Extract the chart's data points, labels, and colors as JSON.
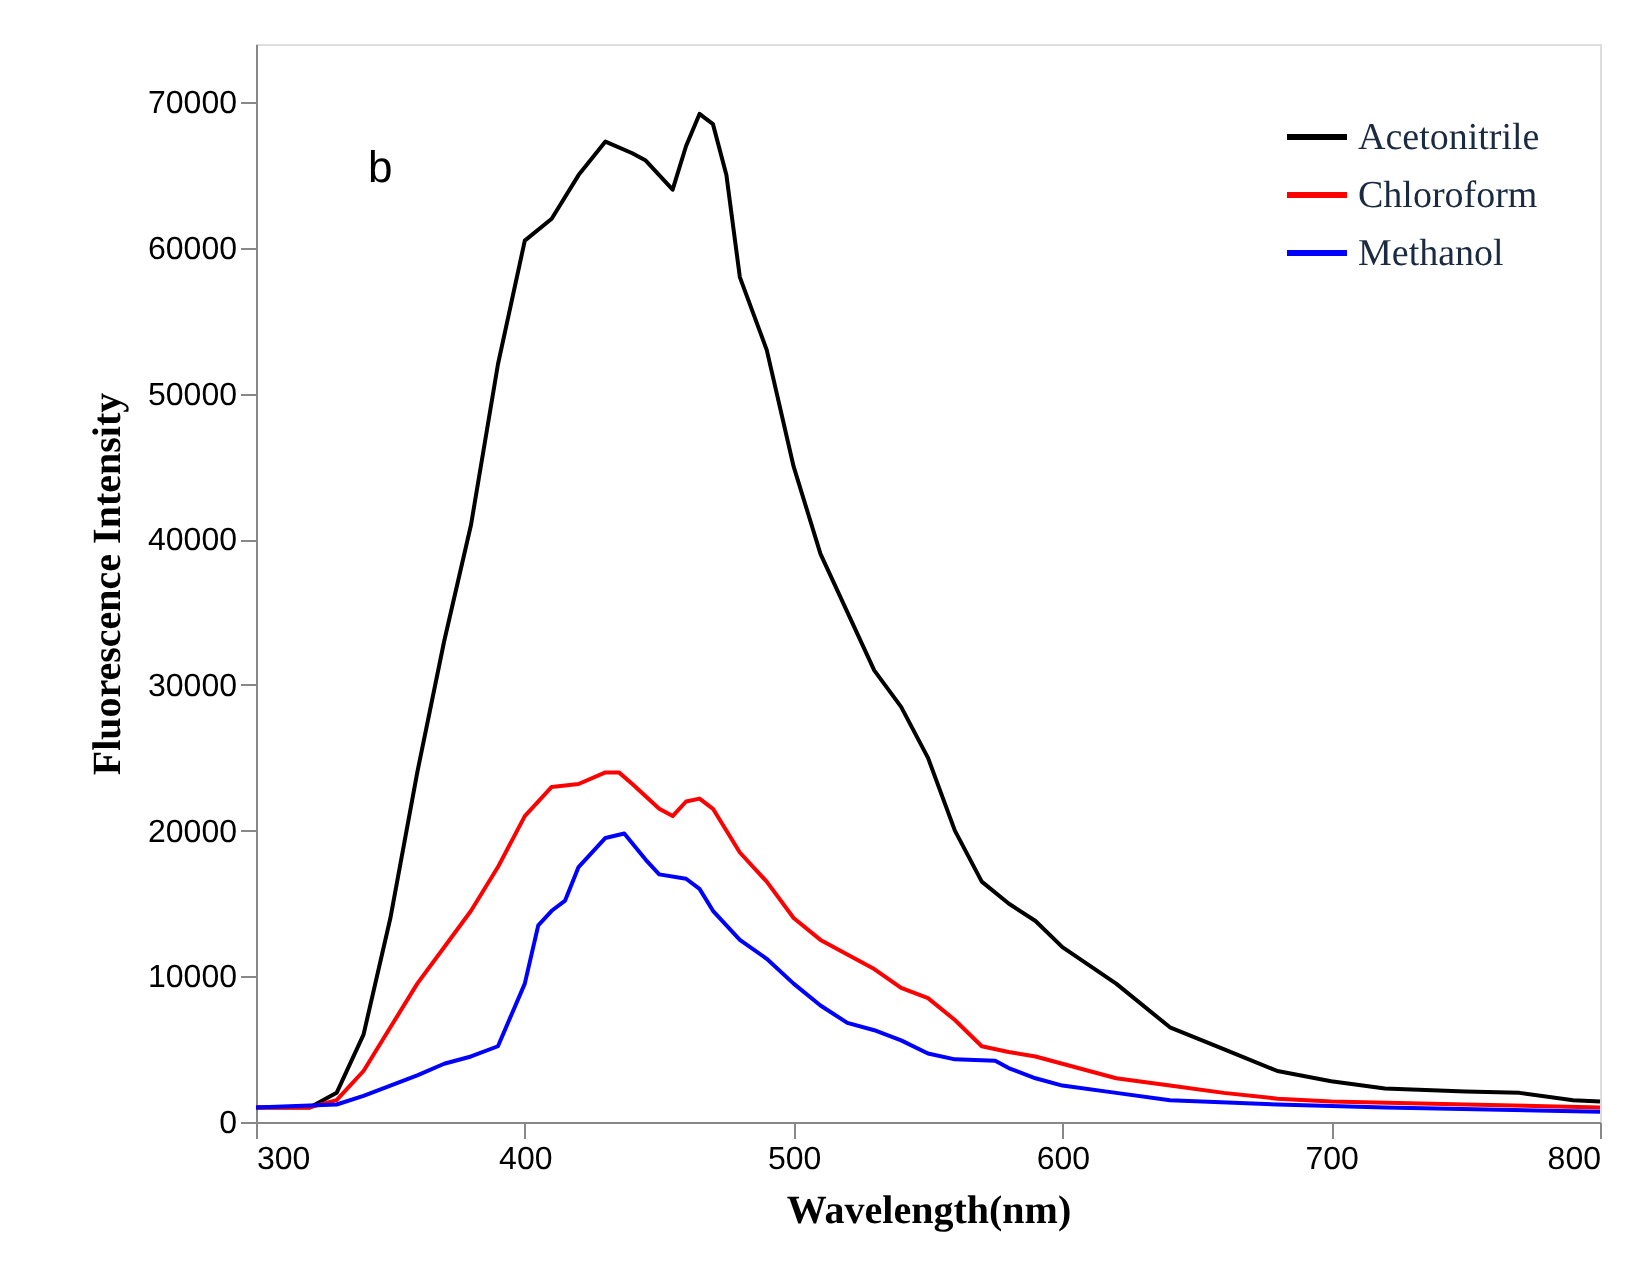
{
  "chart_data": {
    "type": "line",
    "xlabel": "Wavelength(nm)",
    "ylabel": "Fluorescence Intensity",
    "annotations": [
      "b"
    ],
    "xlim": [
      300,
      800
    ],
    "xticks": [
      300,
      400,
      500,
      600,
      700,
      800
    ],
    "ylim": [
      0,
      74000
    ],
    "yticks": [
      0,
      10000,
      20000,
      30000,
      40000,
      50000,
      60000,
      70000
    ],
    "grid": false,
    "legend": "top right",
    "line_style": "solid",
    "marker": "none",
    "series": [
      {
        "name": "Acetonitrile",
        "color": "#000000",
        "x": [
          300,
          320,
          330,
          340,
          350,
          360,
          370,
          380,
          390,
          400,
          410,
          420,
          430,
          440,
          445,
          455,
          460,
          465,
          470,
          475,
          480,
          490,
          500,
          510,
          520,
          530,
          540,
          550,
          560,
          570,
          580,
          590,
          600,
          620,
          640,
          660,
          680,
          700,
          720,
          750,
          770,
          790,
          800
        ],
        "values": [
          1000,
          1000,
          2000,
          6000,
          14000,
          24000,
          33000,
          41000,
          52000,
          60500,
          62000,
          65000,
          67300,
          66500,
          66000,
          64000,
          67000,
          69200,
          68500,
          65000,
          58000,
          53000,
          45000,
          39000,
          35000,
          31000,
          28500,
          25000,
          20000,
          16500,
          15000,
          13800,
          12000,
          9500,
          6500,
          5000,
          3500,
          2800,
          2300,
          2100,
          2000,
          1500,
          1400
        ]
      },
      {
        "name": "Chloroform",
        "color": "#ff0000",
        "x": [
          300,
          320,
          330,
          340,
          350,
          360,
          370,
          380,
          390,
          400,
          410,
          420,
          430,
          435,
          440,
          450,
          455,
          460,
          465,
          470,
          480,
          490,
          500,
          510,
          520,
          530,
          540,
          550,
          560,
          570,
          580,
          590,
          600,
          620,
          640,
          660,
          680,
          700,
          750,
          800
        ],
        "values": [
          1000,
          1000,
          1500,
          3500,
          6500,
          9500,
          12000,
          14500,
          17500,
          21000,
          23000,
          23200,
          24000,
          24000,
          23200,
          21500,
          21000,
          22000,
          22200,
          21500,
          18500,
          16500,
          14000,
          12500,
          11500,
          10500,
          9200,
          8500,
          7000,
          5200,
          4800,
          4500,
          4000,
          3000,
          2500,
          2000,
          1600,
          1400,
          1200,
          1000
        ]
      },
      {
        "name": "Methanol",
        "color": "#0000ff",
        "x": [
          300,
          330,
          340,
          350,
          360,
          370,
          380,
          390,
          400,
          405,
          410,
          415,
          420,
          430,
          437,
          445,
          450,
          460,
          465,
          470,
          480,
          490,
          500,
          510,
          520,
          530,
          540,
          550,
          560,
          575,
          580,
          590,
          600,
          620,
          640,
          680,
          720,
          800
        ],
        "values": [
          1000,
          1200,
          1800,
          2500,
          3200,
          4000,
          4500,
          5200,
          9500,
          13500,
          14500,
          15200,
          17500,
          19500,
          19800,
          18000,
          17000,
          16700,
          16000,
          14500,
          12500,
          11200,
          9500,
          8000,
          6800,
          6300,
          5600,
          4700,
          4300,
          4200,
          3700,
          3000,
          2500,
          2000,
          1500,
          1200,
          1000,
          700
        ]
      }
    ]
  }
}
